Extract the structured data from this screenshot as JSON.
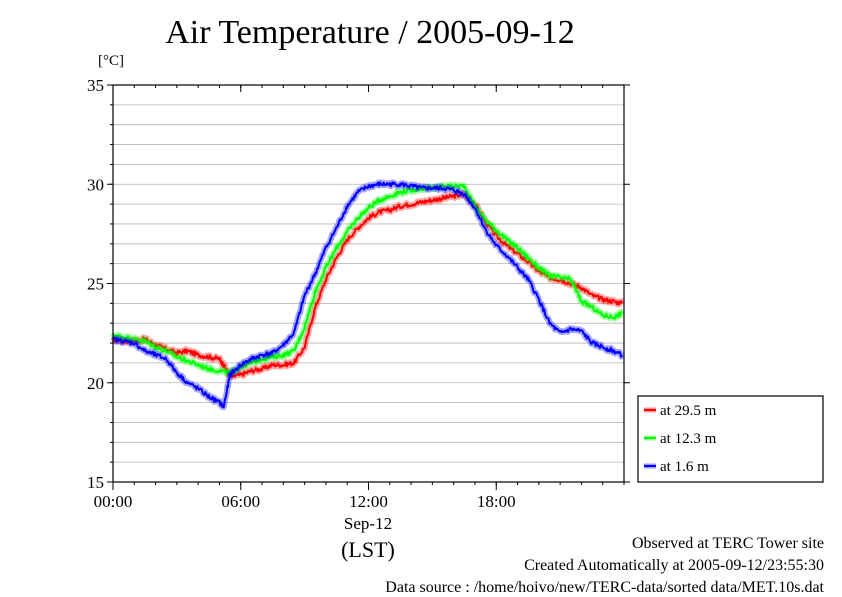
{
  "chart_data": {
    "type": "line",
    "title": "Air Temperature / 2005-09-12",
    "ylabel": "[°C]",
    "xlabel": "(LST)",
    "x_date_label": "Sep-12",
    "ylim": [
      15,
      35
    ],
    "xlim": [
      0,
      24
    ],
    "y_ticks": [
      "15",
      "20",
      "25",
      "30",
      "35"
    ],
    "y_minor_step": 1,
    "x_ticks": [
      {
        "x": 0,
        "label": "00:00"
      },
      {
        "x": 6,
        "label": "06:00"
      },
      {
        "x": 12,
        "label": "12:00"
      },
      {
        "x": 18,
        "label": "18:00"
      }
    ],
    "grid": true,
    "legend_position": "right-bottom",
    "series": [
      {
        "name": "at 29.5 m",
        "color": "#ff0000",
        "x": [
          0,
          0.5,
          1,
          1.5,
          2,
          2.5,
          3,
          3.5,
          4,
          4.5,
          5,
          5.25,
          5.5,
          6,
          6.5,
          7,
          7.5,
          8,
          8.5,
          9,
          9.5,
          10,
          10.5,
          11,
          11.5,
          12,
          12.5,
          13,
          13.5,
          14,
          14.5,
          15,
          15.5,
          16,
          16.5,
          17,
          17.5,
          18,
          18.5,
          19,
          19.5,
          20,
          20.5,
          21,
          21.5,
          22,
          22.5,
          23,
          23.5,
          23.9
        ],
        "y": [
          22.2,
          22.1,
          22.1,
          22.2,
          21.9,
          21.7,
          21.5,
          21.6,
          21.4,
          21.3,
          21.2,
          20.8,
          20.3,
          20.4,
          20.6,
          20.7,
          20.9,
          20.9,
          21.0,
          21.8,
          23.8,
          25.2,
          26.3,
          27.2,
          27.8,
          28.3,
          28.6,
          28.7,
          28.9,
          29.0,
          29.1,
          29.2,
          29.3,
          29.4,
          29.5,
          29.0,
          28.1,
          27.4,
          26.9,
          26.5,
          26.1,
          25.6,
          25.3,
          25.2,
          25.0,
          24.8,
          24.4,
          24.2,
          24.1,
          24.0
        ]
      },
      {
        "name": "at 12.3 m",
        "color": "#00ff00",
        "x": [
          0,
          0.5,
          1,
          1.5,
          2,
          2.5,
          3,
          3.5,
          4,
          4.5,
          5,
          5.5,
          6,
          6.5,
          7,
          7.5,
          8,
          8.5,
          9,
          9.5,
          10,
          10.5,
          11,
          11.5,
          12,
          12.5,
          13,
          13.5,
          14,
          14.5,
          15,
          15.5,
          16,
          16.5,
          17,
          17.5,
          18,
          18.5,
          19,
          19.5,
          20,
          20.5,
          21,
          21.5,
          22,
          22.5,
          23,
          23.5,
          23.9
        ],
        "y": [
          22.4,
          22.3,
          22.2,
          22.1,
          21.8,
          21.6,
          21.3,
          21.1,
          20.9,
          20.7,
          20.6,
          20.5,
          20.8,
          21.0,
          21.2,
          21.3,
          21.4,
          21.6,
          22.8,
          24.6,
          25.8,
          26.8,
          27.6,
          28.3,
          28.8,
          29.2,
          29.4,
          29.6,
          29.7,
          29.8,
          29.8,
          29.9,
          29.9,
          29.9,
          28.9,
          28.2,
          27.7,
          27.2,
          26.8,
          26.3,
          25.8,
          25.4,
          25.3,
          25.2,
          24.1,
          23.8,
          23.4,
          23.3,
          23.5
        ]
      },
      {
        "name": "at 1.6 m",
        "color": "#0000ff",
        "x": [
          0,
          0.5,
          1,
          1.5,
          2,
          2.5,
          3,
          3.5,
          4,
          4.5,
          5,
          5.2,
          5.5,
          6,
          6.5,
          7,
          7.5,
          8,
          8.5,
          9,
          9.5,
          10,
          10.5,
          11,
          11.5,
          12,
          12.5,
          13,
          13.5,
          14,
          14.5,
          15,
          15.5,
          16,
          16.5,
          17,
          17.5,
          18,
          18.5,
          19,
          19.5,
          20,
          20.5,
          21,
          21.5,
          22,
          22.5,
          23,
          23.5,
          23.9
        ],
        "y": [
          22.2,
          22.1,
          22.0,
          21.6,
          21.4,
          21.2,
          20.5,
          20.0,
          19.7,
          19.3,
          19.0,
          18.8,
          20.4,
          20.9,
          21.2,
          21.4,
          21.5,
          21.9,
          22.5,
          24.4,
          25.5,
          26.8,
          27.8,
          28.9,
          29.6,
          29.9,
          30.0,
          30.0,
          30.0,
          29.9,
          29.8,
          29.8,
          29.8,
          29.7,
          29.5,
          28.8,
          27.7,
          26.9,
          26.4,
          25.8,
          25.2,
          24.2,
          23.0,
          22.5,
          22.7,
          22.6,
          22.0,
          21.8,
          21.6,
          21.4
        ]
      }
    ]
  },
  "footer": {
    "line1": "Observed at TERC Tower site",
    "line2": "Created Automatically at 2005-09-12/23:55:30",
    "line3": "Data source : /home/hoivo/new/TERC-data/sorted  data/MET.10s.dat"
  }
}
